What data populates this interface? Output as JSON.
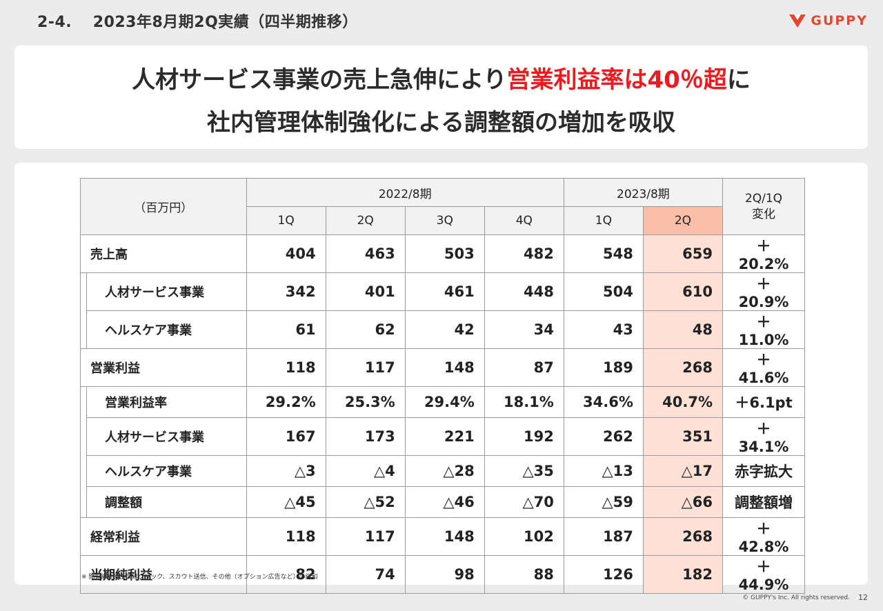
{
  "slide_title": "2-4.　 2023年8月期2Q実績（四半期推移）",
  "logo_text": "GUPPY",
  "headline": {
    "line1_a": "人材サービス事業の売上急伸により",
    "line1_red": "営業利益率は40％超",
    "line1_b": "に",
    "line2": "社内管理体制強化による調整額の増加を吸収"
  },
  "table": {
    "unit": "（百万円）",
    "fy2022": "2022/8期",
    "fy2023": "2023/8期",
    "change_header_1": "2Q/1Q",
    "change_header_2": "変化",
    "quarters": [
      "1Q",
      "2Q",
      "3Q",
      "4Q",
      "1Q",
      "2Q"
    ],
    "rows": [
      {
        "label": "売上高",
        "sub": false,
        "values": [
          "404",
          "463",
          "503",
          "482",
          "548",
          "659"
        ],
        "change": "＋20.2%"
      },
      {
        "label": "人材サービス事業",
        "sub": true,
        "values": [
          "342",
          "401",
          "461",
          "448",
          "504",
          "610"
        ],
        "change": "＋20.9%"
      },
      {
        "label": "ヘルスケア事業",
        "sub": true,
        "values": [
          "61",
          "62",
          "42",
          "34",
          "43",
          "48"
        ],
        "change": "＋11.0%"
      },
      {
        "label": "営業利益",
        "sub": false,
        "values": [
          "118",
          "117",
          "148",
          "87",
          "189",
          "268"
        ],
        "change": "＋41.6%"
      },
      {
        "label": "営業利益率",
        "sub": true,
        "values": [
          "29.2%",
          "25.3%",
          "29.4%",
          "18.1%",
          "34.6%",
          "40.7%"
        ],
        "change": "＋6.1pt"
      },
      {
        "label": "人材サービス事業",
        "sub": true,
        "values": [
          "167",
          "173",
          "221",
          "192",
          "262",
          "351"
        ],
        "change": "＋34.1%"
      },
      {
        "label": "ヘルスケア事業",
        "sub": true,
        "values": [
          "△3",
          "△4",
          "△28",
          "△35",
          "△13",
          "△17"
        ],
        "change": "赤字拡大"
      },
      {
        "label": "調整額",
        "sub": true,
        "values": [
          "△45",
          "△52",
          "△46",
          "△70",
          "△59",
          "△66"
        ],
        "change": "調整額増"
      },
      {
        "label": "経常利益",
        "sub": false,
        "values": [
          "118",
          "117",
          "148",
          "102",
          "187",
          "268"
        ],
        "change": "＋42.8%"
      },
      {
        "label": "当期純利益",
        "sub": false,
        "values": [
          "82",
          "74",
          "98",
          "88",
          "126",
          "182"
        ],
        "change": "＋44.9%"
      }
    ]
  },
  "footnote": "※ 閲覧課金売上高はクリック、スカウト送信、その他（オプション広告など）の総和",
  "copyright": "© GUPPY's Inc. All rights reserved.",
  "page_number": "12"
}
